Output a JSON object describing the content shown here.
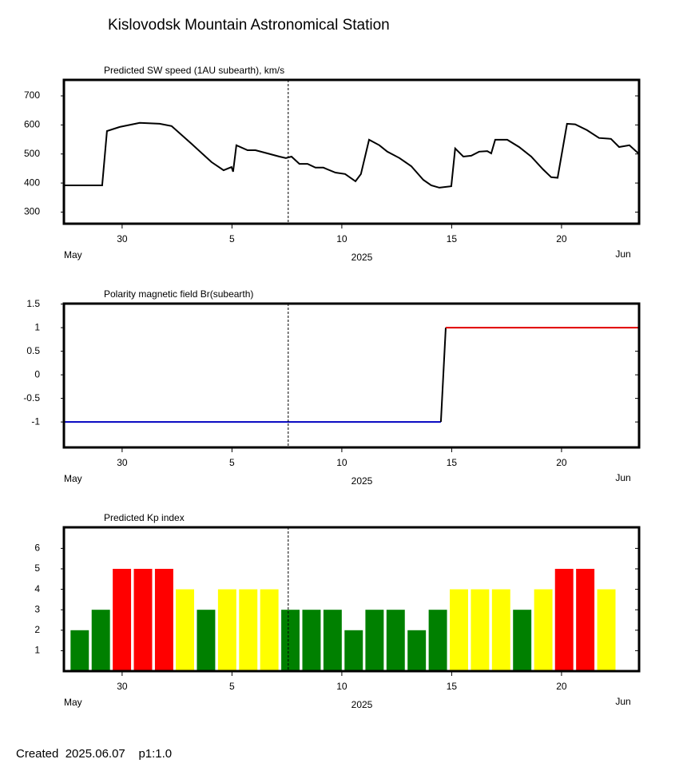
{
  "title": "Kislovodsk Mountain Astronomical Station",
  "footer": "Created  2025.06.07    p1:1.0",
  "chart_data": [
    {
      "type": "line",
      "title": "Predicted SW speed (1AU subearth), km/s",
      "xlim": [
        -2.65,
        23.53
      ],
      "ylim": [
        260,
        755
      ],
      "xticks": [
        {
          "value": 0,
          "label": "30"
        },
        5,
        10,
        15,
        20
      ],
      "yticks": [
        300,
        400,
        500,
        600,
        700
      ],
      "axis_labels": {
        "left": "May",
        "center": "2025",
        "right": "Jun"
      },
      "marker_x": 7.56,
      "series": [
        {
          "color": "#000000",
          "x": [
            -2.65,
            -0.91,
            -0.69,
            -0.11,
            0.8,
            1.71,
            2.25,
            3.16,
            4.07,
            4.62,
            4.98,
            5.05,
            5.2,
            5.71,
            6.07,
            6.62,
            7.16,
            7.45,
            7.71,
            8.07,
            8.44,
            8.8,
            9.16,
            9.35,
            9.71,
            10.15,
            10.62,
            10.87,
            11.24,
            11.71,
            12.07,
            12.62,
            13.16,
            13.71,
            14.07,
            14.44,
            14.98,
            15.16,
            15.53,
            15.89,
            16.25,
            16.62,
            16.8,
            16.98,
            17.53,
            18.07,
            18.62,
            19.16,
            19.53,
            19.82,
            20.25,
            20.62,
            21.16,
            21.71,
            22.25,
            22.62,
            23.09,
            23.53
          ],
          "values": [
            392,
            392,
            579,
            593,
            607,
            604,
            596,
            535,
            472,
            444,
            455,
            439,
            530,
            513,
            513,
            502,
            491,
            486,
            491,
            466,
            466,
            453,
            453,
            447,
            436,
            431,
            406,
            431,
            549,
            530,
            508,
            486,
            458,
            411,
            392,
            384,
            389,
            519,
            491,
            494,
            508,
            510,
            502,
            549,
            549,
            524,
            491,
            447,
            420,
            418,
            604,
            602,
            582,
            555,
            552,
            524,
            530,
            500
          ]
        }
      ]
    },
    {
      "type": "line",
      "title": "Polarity magnetic field  Br(subearth)",
      "xlim": [
        -2.65,
        23.53
      ],
      "ylim": [
        -1.54,
        1.51
      ],
      "xticks": [
        {
          "value": 0,
          "label": "30"
        },
        5,
        10,
        15,
        20
      ],
      "yticks": [
        -1,
        -0.5,
        0,
        0.5,
        1,
        1.5
      ],
      "axis_labels": {
        "left": "May",
        "center": "2025",
        "right": "Jun"
      },
      "marker_x": 7.56,
      "series": [
        {
          "color": "#0000c0",
          "x": [
            -2.65,
            14.51
          ],
          "values": [
            -1,
            -1
          ]
        },
        {
          "color": "#000000",
          "x": [
            14.51,
            14.73
          ],
          "values": [
            -1,
            1
          ]
        },
        {
          "color": "#e00000",
          "x": [
            14.73,
            23.53
          ],
          "values": [
            1,
            1
          ]
        }
      ]
    },
    {
      "type": "bar",
      "title": "Predicted Kp index",
      "xlim": [
        -2.65,
        23.53
      ],
      "ylim": [
        0,
        7.03
      ],
      "xticks": [
        {
          "value": 0,
          "label": "30"
        },
        5,
        10,
        15,
        20
      ],
      "yticks": [
        1,
        2,
        3,
        4,
        5,
        6
      ],
      "axis_labels": {
        "left": "May",
        "center": "2025",
        "right": "Jun"
      },
      "marker_x": 7.56,
      "x": [
        -1.93,
        -0.97,
        -0.01,
        0.95,
        1.91,
        2.86,
        3.82,
        4.78,
        5.74,
        6.7,
        7.66,
        8.62,
        9.58,
        10.54,
        11.49,
        12.45,
        13.41,
        14.37,
        15.33,
        16.29,
        17.25,
        18.21,
        19.17,
        20.12,
        21.08,
        22.04
      ],
      "values": [
        2,
        3,
        5,
        5,
        5,
        4,
        3,
        4,
        4,
        4,
        3,
        3,
        3,
        2,
        3,
        3,
        2,
        3,
        4,
        4,
        4,
        3,
        4,
        5,
        5,
        4
      ],
      "colors": [
        "#008000",
        "#008000",
        "#ff0000",
        "#ff0000",
        "#ff0000",
        "#ffff00",
        "#008000",
        "#ffff00",
        "#ffff00",
        "#ffff00",
        "#008000",
        "#008000",
        "#008000",
        "#008000",
        "#008000",
        "#008000",
        "#008000",
        "#008000",
        "#ffff00",
        "#ffff00",
        "#ffff00",
        "#008000",
        "#ffff00",
        "#ff0000",
        "#ff0000",
        "#ffff00"
      ]
    }
  ]
}
